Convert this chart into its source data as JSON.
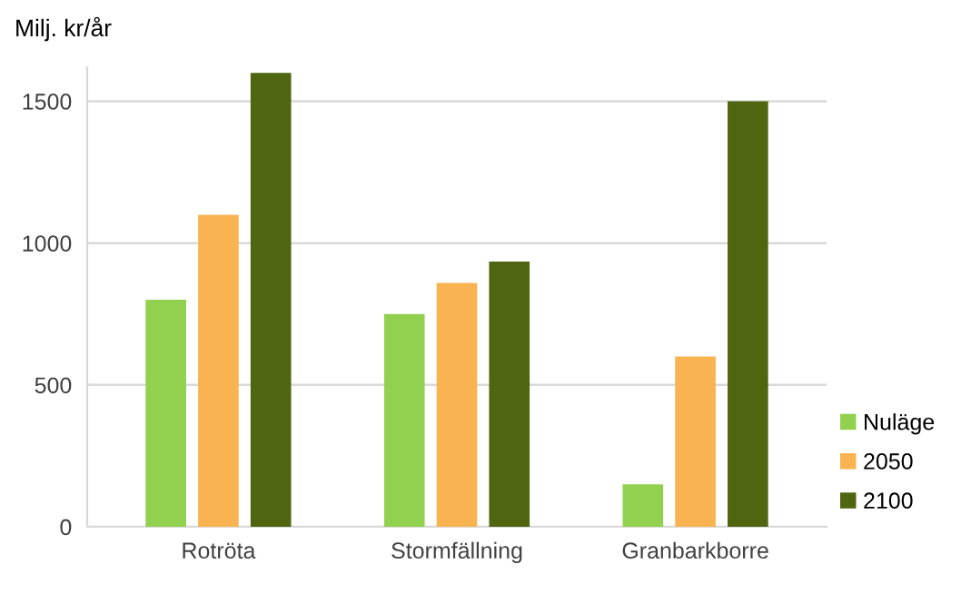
{
  "chart_data": {
    "type": "bar",
    "ylabel": "Milj. kr/år",
    "categories": [
      "Rotröta",
      "Stormfällning",
      "Granbarkborre"
    ],
    "series": [
      {
        "name": "Nuläge",
        "color": "#92d050",
        "values": [
          800,
          750,
          150
        ]
      },
      {
        "name": "2050",
        "color": "#f9b351",
        "values": [
          1100,
          860,
          600
        ]
      },
      {
        "name": "2100",
        "color": "#4f6510",
        "values": [
          1600,
          935,
          1500
        ]
      }
    ],
    "ylim": [
      0,
      1620
    ],
    "yticks": [
      0,
      500,
      1000,
      1500
    ],
    "grid": "y",
    "legend": "bottom right"
  }
}
